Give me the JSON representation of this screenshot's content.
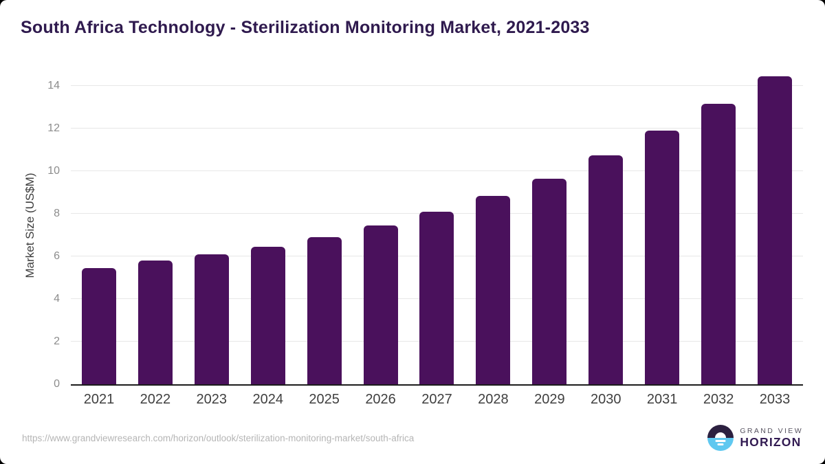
{
  "page": {
    "title": "South Africa Technology - Sterilization Monitoring Market, 2021-2033",
    "source_url": "https://www.grandviewresearch.com/horizon/outlook/sterilization-monitoring-market/south-africa"
  },
  "chart_data": {
    "type": "bar",
    "title": "South Africa Technology - Sterilization Monitoring Market, 2021-2033",
    "categories": [
      "2021",
      "2022",
      "2023",
      "2024",
      "2025",
      "2026",
      "2027",
      "2028",
      "2029",
      "2030",
      "2031",
      "2032",
      "2033"
    ],
    "values": [
      5.45,
      5.8,
      6.1,
      6.45,
      6.9,
      7.45,
      8.1,
      8.85,
      9.65,
      10.75,
      11.9,
      13.15,
      14.45
    ],
    "xlabel": "",
    "ylabel": "Market Size (US$M)",
    "ylim": [
      0,
      14.9
    ],
    "yticks": [
      0,
      2,
      4,
      6,
      8,
      10,
      12,
      14
    ],
    "grid": "horizontal",
    "legend": "none",
    "bar_color": "#4A115C",
    "colors": {
      "title": "#2F1A4E",
      "gridline": "#e7e7e7",
      "axis_line": "#1c1c1c",
      "y_tick_label": "#8c8c8c",
      "x_tick_label": "#3f3f3f"
    }
  },
  "branding": {
    "logo_line1": "GRAND VIEW",
    "logo_line2": "HORIZON",
    "colors": {
      "circle_top": "#2C2040",
      "circle_bottom": "#5FC8F0",
      "wordmark": "#321B52"
    }
  }
}
